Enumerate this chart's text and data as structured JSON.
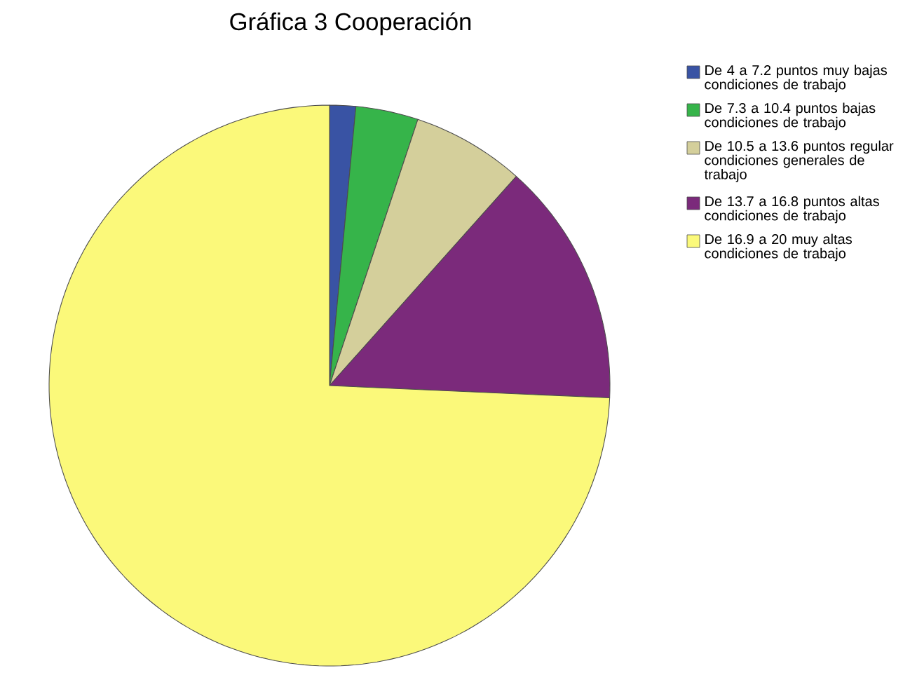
{
  "chart_data": {
    "type": "pie",
    "title": "Gráfica 3 Cooperación",
    "categories": [
      "De 4 a 7.2 puntos muy bajas condiciones de trabajo",
      "De 7.3 a 10.4 puntos bajas condiciones de trabajo",
      "De 10.5 a 13.6 puntos regular condiciones generales de trabajo",
      "De 13.7 a 16.8 puntos altas condiciones de trabajo",
      "De 16.9 a 20 muy altas condiciones de trabajo"
    ],
    "values": [
      1.5,
      3.6,
      6.5,
      14.1,
      74.3
    ],
    "colors": [
      "#3953a4",
      "#36b44a",
      "#d4cf9b",
      "#7b2a7b",
      "#fbf97a"
    ],
    "legend": "top right"
  }
}
